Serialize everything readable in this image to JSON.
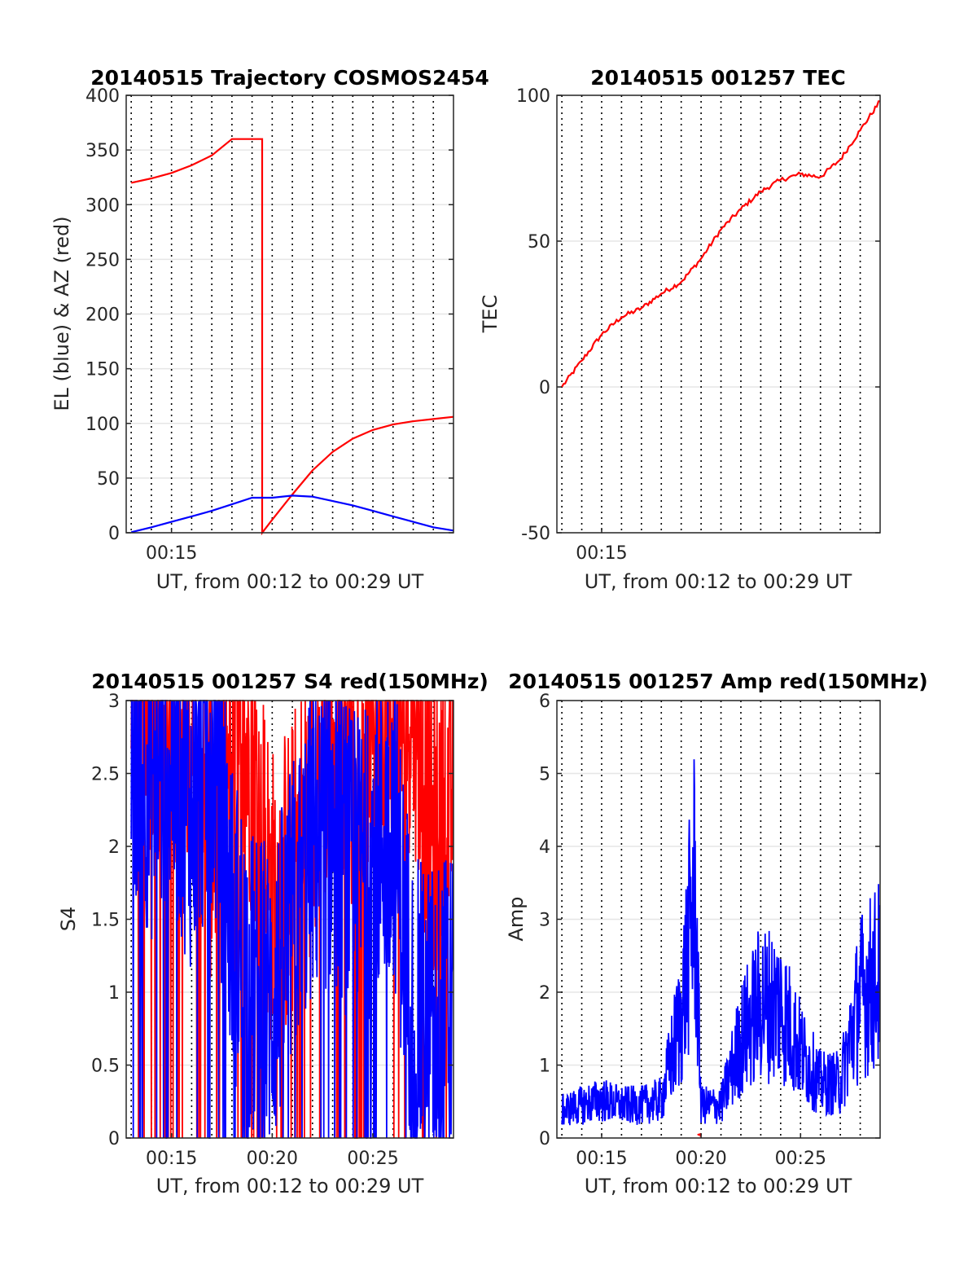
{
  "chart_data": [
    {
      "id": "trajectory",
      "type": "line",
      "title": "20140515 Trajectory COSMOS2454",
      "xlabel": "UT, from 00:12 to 00:29 UT",
      "ylabel": "EL (blue) & AZ (red)",
      "xlim": [
        "00:12:45",
        "00:29:00"
      ],
      "ylim": [
        0,
        400
      ],
      "yticks": [
        "0",
        "50",
        "100",
        "150",
        "200",
        "250",
        "300",
        "350",
        "400"
      ],
      "xticks": [
        {
          "t": "00:15:00",
          "label": "00:15"
        }
      ],
      "x_grid_minutes": [
        "00:13",
        "00:14",
        "00:15",
        "00:16",
        "00:17",
        "00:18",
        "00:19",
        "00:20",
        "00:21",
        "00:22",
        "00:23",
        "00:24",
        "00:25",
        "00:26",
        "00:27",
        "00:28"
      ],
      "grid": true,
      "series": [
        {
          "name": "AZ",
          "color": "#ff0000",
          "x": [
            "00:13:00",
            "00:14:00",
            "00:15:00",
            "00:16:00",
            "00:17:00",
            "00:18:00",
            "00:19:30",
            "00:19:30",
            "00:20:00",
            "00:21:00",
            "00:22:00",
            "00:23:00",
            "00:24:00",
            "00:25:00",
            "00:26:00",
            "00:27:00",
            "00:28:00",
            "00:29:00"
          ],
          "y": [
            320,
            324,
            329,
            336,
            345,
            360,
            360,
            0,
            12,
            35,
            57,
            74,
            86,
            94,
            99,
            102,
            104,
            106
          ]
        },
        {
          "name": "EL",
          "color": "#0000ff",
          "x": [
            "00:13:00",
            "00:14:00",
            "00:15:00",
            "00:16:00",
            "00:17:00",
            "00:18:00",
            "00:19:00",
            "00:20:00",
            "00:21:00",
            "00:22:00",
            "00:23:00",
            "00:24:00",
            "00:25:00",
            "00:26:00",
            "00:27:00",
            "00:28:00",
            "00:29:00"
          ],
          "y": [
            0.5,
            5,
            10,
            15,
            20,
            26,
            32,
            32,
            34,
            33,
            29,
            25,
            20,
            15,
            10,
            5,
            2
          ]
        }
      ]
    },
    {
      "id": "tec",
      "type": "line",
      "title": "20140515 001257 TEC",
      "xlabel": "UT, from 00:12 to 00:29 UT",
      "ylabel": "TEC",
      "xlim": [
        "00:12:45",
        "00:29:00"
      ],
      "ylim": [
        -50,
        100
      ],
      "yticks": [
        "-50",
        "0",
        "50",
        "100"
      ],
      "xticks": [
        {
          "t": "00:15:00",
          "label": "00:15"
        }
      ],
      "x_grid_minutes": [
        "00:13",
        "00:14",
        "00:15",
        "00:16",
        "00:17",
        "00:18",
        "00:19",
        "00:20",
        "00:21",
        "00:22",
        "00:23",
        "00:24",
        "00:25",
        "00:26",
        "00:27",
        "00:28"
      ],
      "grid": true,
      "series": [
        {
          "name": "TEC",
          "color": "#ff0000",
          "x": [
            "00:13:00",
            "00:14:00",
            "00:15:00",
            "00:16:00",
            "00:17:00",
            "00:18:00",
            "00:19:00",
            "00:20:00",
            "00:21:00",
            "00:22:00",
            "00:23:00",
            "00:24:00",
            "00:25:00",
            "00:26:00",
            "00:27:00",
            "00:28:00",
            "00:29:00"
          ],
          "y": [
            0,
            9,
            18,
            24,
            27,
            32,
            36,
            44,
            54,
            61,
            67,
            71,
            73,
            72,
            78,
            88,
            98
          ]
        }
      ]
    },
    {
      "id": "s4",
      "type": "line",
      "title": "20140515 001257 S4 red(150MHz)",
      "xlabel": "UT, from 00:12 to 00:29 UT",
      "ylabel": "S4",
      "xlim": [
        "00:12:45",
        "00:29:00"
      ],
      "ylim": [
        0,
        3
      ],
      "yticks": [
        "0",
        "0.5",
        "1",
        "1.5",
        "2",
        "2.5",
        "3"
      ],
      "xticks": [
        {
          "t": "00:15:00",
          "label": "00:15"
        },
        {
          "t": "00:20:00",
          "label": "00:20"
        },
        {
          "t": "00:25:00",
          "label": "00:25"
        }
      ],
      "x_grid_minutes": [
        "00:13",
        "00:14",
        "00:15",
        "00:16",
        "00:17",
        "00:18",
        "00:19",
        "00:20",
        "00:21",
        "00:22",
        "00:23",
        "00:24",
        "00:25",
        "00:26",
        "00:27",
        "00:28"
      ],
      "grid": true,
      "series": [
        {
          "name": "red",
          "color": "#ff0000",
          "x": [
            "00:13:00",
            "00:14:00",
            "00:15:00",
            "00:16:00",
            "00:17:00",
            "00:18:00",
            "00:19:00",
            "00:20:00",
            "00:21:00",
            "00:22:00",
            "00:23:00",
            "00:24:00",
            "00:25:00",
            "00:26:00",
            "00:27:00",
            "00:28:00",
            "00:29:00"
          ],
          "y": [
            3,
            2.7,
            2.8,
            2.5,
            1.9,
            2.6,
            2.4,
            1.4,
            1.6,
            2.2,
            2.6,
            2.4,
            2.8,
            2.5,
            2.9,
            1.8,
            2.2
          ]
        },
        {
          "name": "blue",
          "color": "#0000ff",
          "x": [
            "00:13:00",
            "00:14:00",
            "00:15:00",
            "00:16:00",
            "00:17:00",
            "00:18:00",
            "00:19:00",
            "00:20:00",
            "00:21:00",
            "00:22:00",
            "00:23:00",
            "00:24:00",
            "00:25:00",
            "00:26:00",
            "00:27:00",
            "00:28:00",
            "00:29:00"
          ],
          "y": [
            2.6,
            2.2,
            2.4,
            2.0,
            2.5,
            1.3,
            0.8,
            0.7,
            1.3,
            1.8,
            1.9,
            1.6,
            1.7,
            2.0,
            0.6,
            0.6,
            0.7
          ]
        }
      ]
    },
    {
      "id": "amp",
      "type": "line",
      "title": "20140515 001257 Amp red(150MHz)",
      "xlabel": "UT, from 00:12 to 00:29 UT",
      "ylabel": "Amp",
      "xlim": [
        "00:12:45",
        "00:29:00"
      ],
      "ylim": [
        0,
        6
      ],
      "yticks": [
        "0",
        "1",
        "2",
        "3",
        "4",
        "5",
        "6"
      ],
      "xticks": [
        {
          "t": "00:15:00",
          "label": "00:15"
        },
        {
          "t": "00:20:00",
          "label": "00:20"
        },
        {
          "t": "00:25:00",
          "label": "00:25"
        }
      ],
      "x_grid_minutes": [
        "00:13",
        "00:14",
        "00:15",
        "00:16",
        "00:17",
        "00:18",
        "00:19",
        "00:20",
        "00:21",
        "00:22",
        "00:23",
        "00:24",
        "00:25",
        "00:26",
        "00:27",
        "00:28"
      ],
      "grid": true,
      "series": [
        {
          "name": "blue",
          "color": "#0000ff",
          "x": [
            "00:13:00",
            "00:14:00",
            "00:15:00",
            "00:16:00",
            "00:17:00",
            "00:18:00",
            "00:19:00",
            "00:19:40",
            "00:20:00",
            "00:21:00",
            "00:22:00",
            "00:23:00",
            "00:24:00",
            "00:25:00",
            "00:26:00",
            "00:27:00",
            "00:28:00",
            "00:29:00"
          ],
          "y": [
            0.5,
            0.6,
            0.7,
            0.6,
            0.6,
            0.7,
            2.2,
            4.6,
            0.6,
            0.6,
            1.8,
            2.5,
            2.4,
            1.6,
            1.0,
            1.0,
            2.6,
            3.0
          ]
        },
        {
          "name": "red",
          "color": "#ff0000",
          "x": [
            "00:19:50",
            "00:20:00"
          ],
          "y": [
            0.05,
            0.05
          ]
        }
      ]
    }
  ]
}
